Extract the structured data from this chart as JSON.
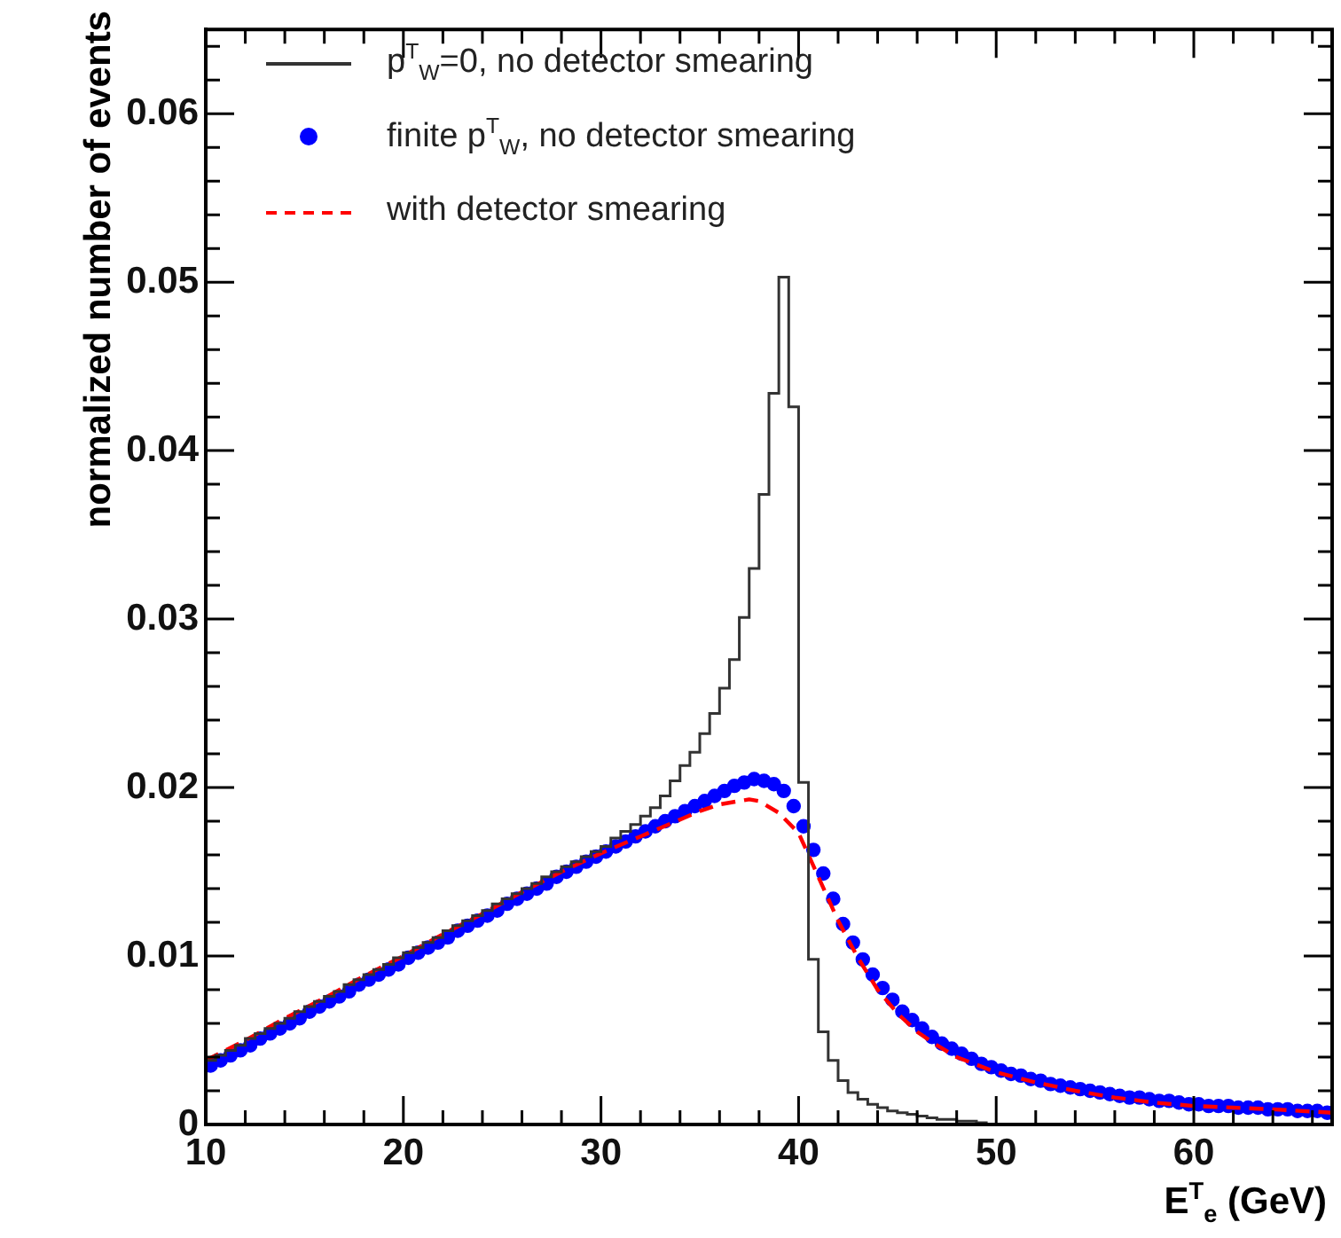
{
  "chart_data": {
    "type": "step",
    "xlabel": "E$^{T}$$_{e}$ (GeV)",
    "ylabel": "normalized number of events",
    "xlim": [
      10,
      67
    ],
    "ylim": [
      0,
      0.065
    ],
    "xticks": [
      10,
      {
        "value": 12,
        "label": null
      },
      {
        "value": 14,
        "label": null
      },
      {
        "value": 16,
        "label": null
      },
      {
        "value": 18,
        "label": null
      },
      20,
      {
        "value": 22,
        "label": null
      },
      {
        "value": 24,
        "label": null
      },
      {
        "value": 26,
        "label": null
      },
      {
        "value": 28,
        "label": null
      },
      30,
      {
        "value": 32,
        "label": null
      },
      {
        "value": 34,
        "label": null
      },
      {
        "value": 36,
        "label": null
      },
      {
        "value": 38,
        "label": null
      },
      40,
      {
        "value": 42,
        "label": null
      },
      {
        "value": 44,
        "label": null
      },
      {
        "value": 46,
        "label": null
      },
      {
        "value": 48,
        "label": null
      },
      50,
      {
        "value": 52,
        "label": null
      },
      {
        "value": 54,
        "label": null
      },
      {
        "value": 56,
        "label": null
      },
      {
        "value": 58,
        "label": null
      },
      60,
      {
        "value": 62,
        "label": null
      },
      {
        "value": 64,
        "label": null
      },
      {
        "value": 66,
        "label": null
      }
    ],
    "yticks": [
      0,
      {
        "value": 0.002,
        "label": null
      },
      {
        "value": 0.004,
        "label": null
      },
      {
        "value": 0.006,
        "label": null
      },
      {
        "value": 0.008,
        "label": null
      },
      0.01,
      {
        "value": 0.012,
        "label": null
      },
      {
        "value": 0.014,
        "label": null
      },
      {
        "value": 0.016,
        "label": null
      },
      {
        "value": 0.018,
        "label": null
      },
      0.02,
      {
        "value": 0.022,
        "label": null
      },
      {
        "value": 0.024,
        "label": null
      },
      {
        "value": 0.026,
        "label": null
      },
      {
        "value": 0.028,
        "label": null
      },
      0.03,
      {
        "value": 0.032,
        "label": null
      },
      {
        "value": 0.034,
        "label": null
      },
      {
        "value": 0.036,
        "label": null
      },
      {
        "value": 0.038,
        "label": null
      },
      0.04,
      {
        "value": 0.042,
        "label": null
      },
      {
        "value": 0.044,
        "label": null
      },
      {
        "value": 0.046,
        "label": null
      },
      {
        "value": 0.048,
        "label": null
      },
      0.05,
      {
        "value": 0.052,
        "label": null
      },
      {
        "value": 0.054,
        "label": null
      },
      {
        "value": 0.056,
        "label": null
      },
      {
        "value": 0.058,
        "label": null
      },
      0.06,
      {
        "value": 0.062,
        "label": null
      },
      {
        "value": 0.064,
        "label": null
      }
    ],
    "legend": "top left",
    "series": [
      {
        "name": "p$^{T}$$_{W}$=0, no detector smearing",
        "color": "#333333",
        "x": [
          10,
          10.5,
          11,
          11.5,
          12,
          12.5,
          13,
          13.5,
          14,
          14.5,
          15,
          15.5,
          16,
          16.5,
          17,
          17.5,
          18,
          18.5,
          19,
          19.5,
          20,
          20.5,
          21,
          21.5,
          22,
          22.5,
          23,
          23.5,
          24,
          24.5,
          25,
          25.5,
          26,
          26.5,
          27,
          27.5,
          28,
          28.5,
          29,
          29.5,
          30,
          30.5,
          31,
          31.5,
          32,
          32.5,
          33,
          33.5,
          34,
          34.5,
          35,
          35.5,
          36,
          36.5,
          37,
          37.5,
          38,
          38.5,
          39,
          39.5,
          40,
          40.5,
          41,
          41.5,
          42,
          42.5,
          43,
          43.5,
          44,
          44.5,
          45,
          45.5,
          46,
          46.5,
          47,
          47.5,
          48,
          48.5,
          49,
          49.5,
          50,
          50.5,
          51,
          51.5,
          52,
          52.5,
          53,
          53.5,
          54,
          54.5,
          55,
          55.5,
          56,
          56.5,
          57,
          57.5,
          58,
          58.5,
          59,
          59.5,
          60,
          60.5,
          61,
          61.5,
          62,
          62.5,
          63,
          63.5,
          64,
          64.5,
          65,
          65.5,
          66,
          66.5
        ],
        "values": [
          0.0035,
          0.0038,
          0.0041,
          0.0044,
          0.0047,
          0.0051,
          0.0054,
          0.0057,
          0.006,
          0.0063,
          0.0067,
          0.007,
          0.0073,
          0.0076,
          0.0079,
          0.0083,
          0.0086,
          0.0089,
          0.0092,
          0.0095,
          0.0099,
          0.0102,
          0.0105,
          0.0108,
          0.0111,
          0.0115,
          0.0118,
          0.0121,
          0.0124,
          0.0127,
          0.0131,
          0.0134,
          0.0137,
          0.014,
          0.0143,
          0.0147,
          0.015,
          0.0153,
          0.0156,
          0.0159,
          0.0162,
          0.0165,
          0.017,
          0.0174,
          0.0178,
          0.0183,
          0.0188,
          0.0195,
          0.0204,
          0.0213,
          0.0221,
          0.0232,
          0.0244,
          0.0259,
          0.0276,
          0.0301,
          0.033,
          0.0374,
          0.0434,
          0.0503,
          0.0426,
          0.0203,
          0.0098,
          0.0055,
          0.0038,
          0.0026,
          0.0019,
          0.0015,
          0.0012,
          0.001,
          0.0008,
          0.0007,
          0.0006,
          0.0005,
          0.0004,
          0.0003,
          0.0003,
          0.0002,
          0.0002,
          0.0001,
          0,
          0,
          0,
          0,
          0,
          0,
          0,
          0,
          0,
          0,
          0,
          0,
          0,
          0,
          0,
          0,
          0,
          0,
          0,
          0,
          0,
          0,
          0,
          0,
          0,
          0,
          0,
          0,
          0,
          0,
          0,
          0,
          0,
          0
        ]
      },
      {
        "type": "scatter",
        "name": "finite p$^{T}$$_{W}$, no detector smearing",
        "color": "#0000ff",
        "marker": "circle",
        "x": [
          10.25,
          10.75,
          11.25,
          11.75,
          12.25,
          12.75,
          13.25,
          13.75,
          14.25,
          14.75,
          15.25,
          15.75,
          16.25,
          16.75,
          17.25,
          17.75,
          18.25,
          18.75,
          19.25,
          19.75,
          20.25,
          20.75,
          21.25,
          21.75,
          22.25,
          22.75,
          23.25,
          23.75,
          24.25,
          24.75,
          25.25,
          25.75,
          26.25,
          26.75,
          27.25,
          27.75,
          28.25,
          28.75,
          29.25,
          29.75,
          30.25,
          30.75,
          31.25,
          31.75,
          32.25,
          32.75,
          33.25,
          33.75,
          34.25,
          34.75,
          35.25,
          35.75,
          36.25,
          36.75,
          37.25,
          37.75,
          38.25,
          38.75,
          39.25,
          39.75,
          40.25,
          40.75,
          41.25,
          41.75,
          42.25,
          42.75,
          43.25,
          43.75,
          44.25,
          44.75,
          45.25,
          45.75,
          46.25,
          46.75,
          47.25,
          47.75,
          48.25,
          48.75,
          49.25,
          49.75,
          50.25,
          50.75,
          51.25,
          51.75,
          52.25,
          52.75,
          53.25,
          53.75,
          54.25,
          54.75,
          55.25,
          55.75,
          56.25,
          56.75,
          57.25,
          57.75,
          58.25,
          58.75,
          59.25,
          59.75,
          60.25,
          60.75,
          61.25,
          61.75,
          62.25,
          62.75,
          63.25,
          63.75,
          64.25,
          64.75,
          65.25,
          65.75,
          66.25,
          66.75
        ],
        "values": [
          0.0035,
          0.0038,
          0.0041,
          0.0044,
          0.0047,
          0.0051,
          0.0054,
          0.0057,
          0.006,
          0.0063,
          0.0067,
          0.007,
          0.0073,
          0.0076,
          0.0079,
          0.0083,
          0.0086,
          0.0089,
          0.0092,
          0.0095,
          0.0099,
          0.0102,
          0.0105,
          0.0108,
          0.0111,
          0.0115,
          0.0118,
          0.0121,
          0.0124,
          0.0127,
          0.0131,
          0.0134,
          0.0137,
          0.014,
          0.0143,
          0.0147,
          0.015,
          0.0153,
          0.0156,
          0.0159,
          0.0162,
          0.0165,
          0.0168,
          0.0171,
          0.0174,
          0.0177,
          0.018,
          0.0183,
          0.0186,
          0.0189,
          0.0192,
          0.0195,
          0.0198,
          0.0201,
          0.0203,
          0.0205,
          0.0204,
          0.0202,
          0.0198,
          0.0189,
          0.0177,
          0.0163,
          0.0149,
          0.0134,
          0.0119,
          0.0108,
          0.0098,
          0.0089,
          0.0081,
          0.0074,
          0.0067,
          0.0062,
          0.0057,
          0.0052,
          0.0048,
          0.0045,
          0.0042,
          0.0039,
          0.0036,
          0.0034,
          0.0032,
          0.003,
          0.0029,
          0.0027,
          0.0026,
          0.0024,
          0.0023,
          0.0022,
          0.0021,
          0.002,
          0.0019,
          0.0018,
          0.0017,
          0.0016,
          0.0016,
          0.0015,
          0.0014,
          0.0014,
          0.0013,
          0.0012,
          0.0012,
          0.0011,
          0.0011,
          0.0011,
          0.001,
          0.001,
          0.001,
          0.0009,
          0.0009,
          0.0009,
          0.0008,
          0.0008,
          0.0008,
          0.0007
        ]
      },
      {
        "type": "line",
        "name": "with detector smearing",
        "color": "#ff0000",
        "line_style": "dashed",
        "x": [
          10,
          12,
          14,
          16,
          18,
          20,
          22,
          24,
          26,
          28,
          30,
          32,
          34,
          35,
          36,
          37,
          37.5,
          38,
          39,
          40,
          41,
          42,
          43,
          44,
          45,
          46,
          47,
          48,
          50,
          52,
          54,
          56,
          58,
          60,
          62,
          64,
          67
        ],
        "values": [
          0.0038,
          0.005,
          0.0063,
          0.0075,
          0.0088,
          0.01,
          0.0113,
          0.0125,
          0.0138,
          0.015,
          0.0161,
          0.0171,
          0.0181,
          0.0186,
          0.019,
          0.0192,
          0.0193,
          0.0192,
          0.0185,
          0.0173,
          0.0147,
          0.0121,
          0.0099,
          0.008,
          0.0066,
          0.0055,
          0.0047,
          0.004,
          0.0031,
          0.0025,
          0.002,
          0.0016,
          0.0013,
          0.0011,
          0.001,
          0.0009,
          0.0007
        ]
      }
    ]
  }
}
